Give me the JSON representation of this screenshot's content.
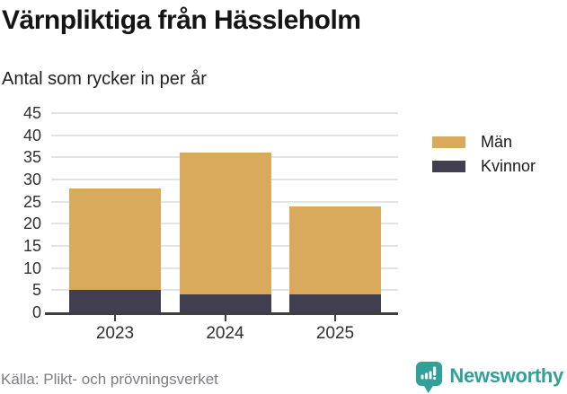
{
  "header": {
    "title": "Värnpliktiga från Hässleholm",
    "subtitle": "Antal som rycker in per år"
  },
  "chart_data": {
    "type": "bar",
    "stacked": true,
    "categories": [
      "2023",
      "2024",
      "2025"
    ],
    "series": [
      {
        "name": "Män",
        "color": "#d9a95c",
        "values": [
          23,
          32,
          20
        ]
      },
      {
        "name": "Kvinnor",
        "color": "#413f4f",
        "values": [
          5,
          4,
          4
        ]
      }
    ],
    "stack_order_bottom_to_top": [
      "Kvinnor",
      "Män"
    ],
    "totals": [
      28,
      36,
      24
    ],
    "title": "Värnpliktiga från Hässleholm",
    "subtitle": "Antal som rycker in per år",
    "xlabel": "",
    "ylabel": "",
    "ylim": [
      0,
      45
    ],
    "yticks": [
      0,
      5,
      10,
      15,
      20,
      25,
      30,
      35,
      40,
      45
    ],
    "grid": true,
    "legend_position": "right"
  },
  "legend": {
    "items": [
      {
        "label": "Män",
        "color": "#d9a95c"
      },
      {
        "label": "Kvinnor",
        "color": "#413f4f"
      }
    ]
  },
  "footer": {
    "source": "Källa: Plikt- och prövningsverket",
    "brand": "Newsworthy"
  },
  "colors": {
    "men": "#d9a95c",
    "women": "#413f4f",
    "gridline": "#e3e3e3",
    "axis": "#3f3f3f",
    "brand_teal": "#2fa199"
  }
}
